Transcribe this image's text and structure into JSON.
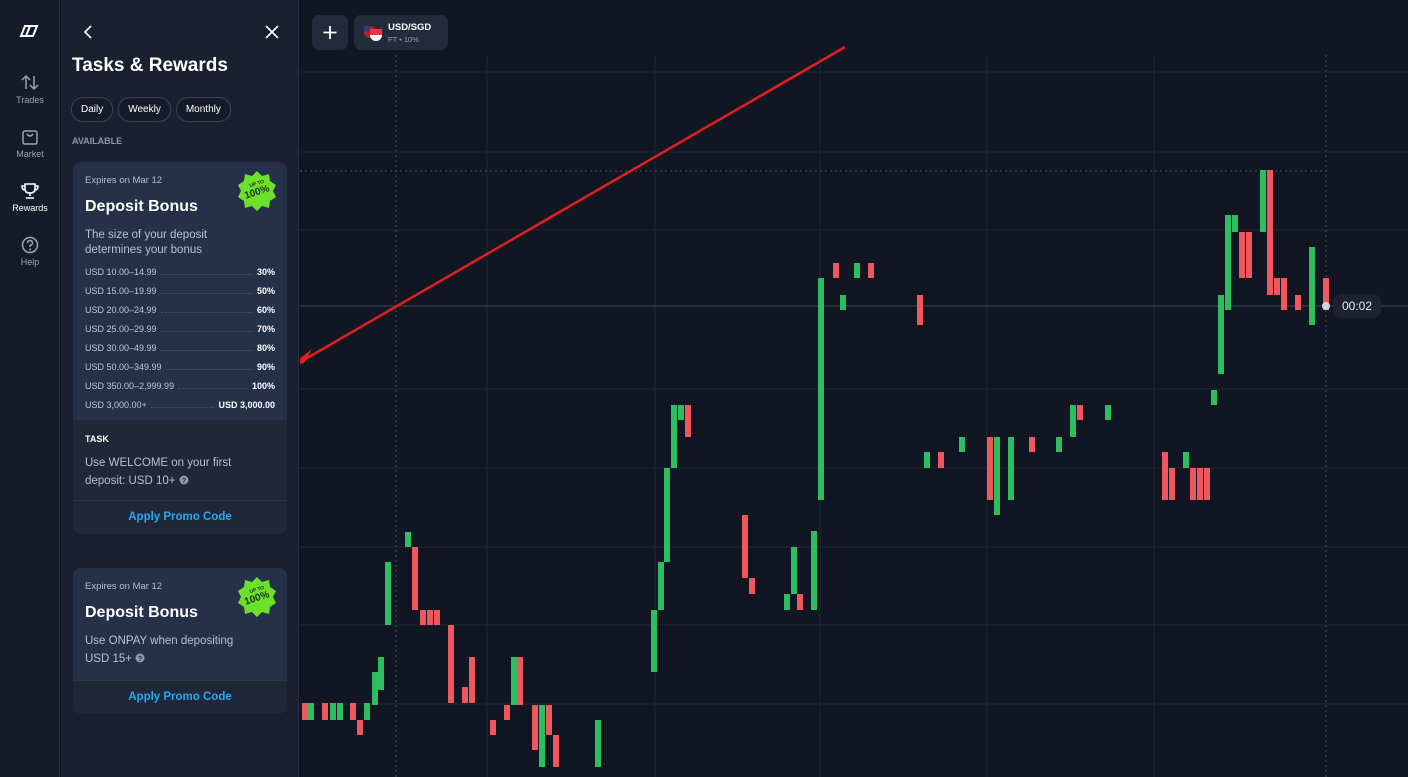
{
  "nav": [
    {
      "label": "Trades"
    },
    {
      "label": "Market"
    },
    {
      "label": "Rewards"
    },
    {
      "label": "Help"
    }
  ],
  "panel": {
    "title": "Tasks & Rewards",
    "tabs": [
      "Daily",
      "Weekly",
      "Monthly"
    ],
    "section": "AVAILABLE",
    "cards": [
      {
        "expires": "Expires on Mar 12",
        "badge_top": "UP TO",
        "badge_value": "100%",
        "title": "Deposit Bonus",
        "description": "The size of your deposit determines your bonus",
        "tiers": [
          [
            "USD 10.00–14.99",
            "30%"
          ],
          [
            "USD 15.00–19.99",
            "50%"
          ],
          [
            "USD 20.00–24.99",
            "60%"
          ],
          [
            "USD 25.00–29.99",
            "70%"
          ],
          [
            "USD 30.00–49.99",
            "80%"
          ],
          [
            "USD 50.00–349.99",
            "90%"
          ],
          [
            "USD 350.00–2,999.99",
            "100%"
          ],
          [
            "USD 3,000.00+",
            "USD 3,000.00"
          ]
        ],
        "task_label": "TASK",
        "task": "Use WELCOME on your first deposit: USD 10+",
        "button": "Apply Promo Code"
      },
      {
        "expires": "Expires on Mar 12",
        "badge_top": "UP TO",
        "badge_value": "100%",
        "title": "Deposit Bonus",
        "task": "Use ONPAY when depositing USD 15+",
        "button": "Apply Promo Code"
      }
    ]
  },
  "topbar": {
    "asset": "USD/SGD",
    "asset_sub": "FT • 10%"
  },
  "chart": {
    "timer": "00:02"
  }
}
